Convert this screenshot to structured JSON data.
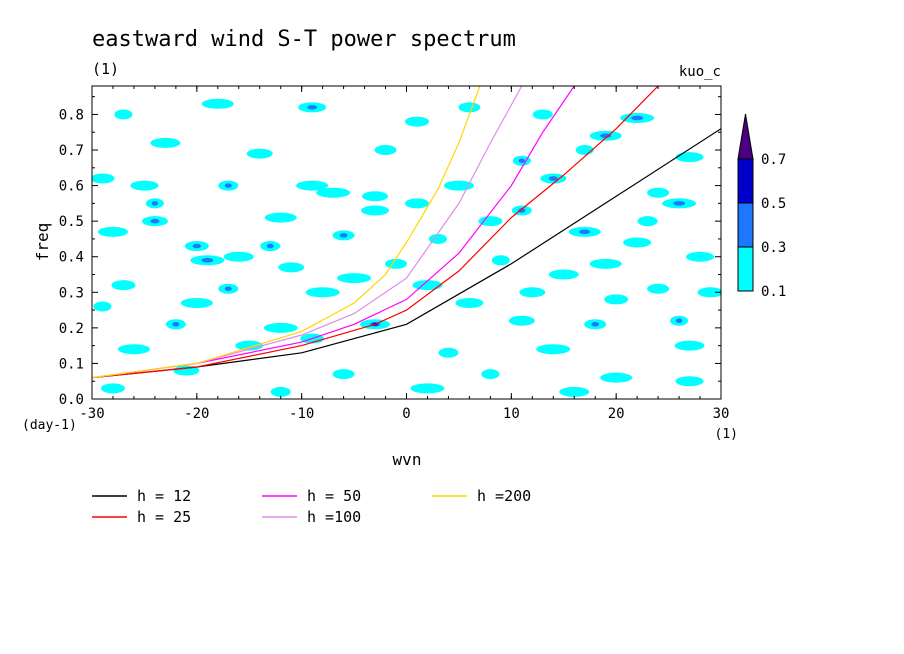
{
  "chart_data": {
    "type": "heatmap",
    "title": "eastward wind S-T power spectrum",
    "subtitle_left": "(1)",
    "subtitle_right": "kuo_c",
    "xlabel": "wvn",
    "ylabel": "freq",
    "x_unit": "(1)",
    "y_unit": "(day-1)",
    "xlim": [
      -30,
      30
    ],
    "ylim": [
      0.0,
      0.88
    ],
    "xticks": [
      -30,
      -20,
      -10,
      0,
      10,
      20,
      30
    ],
    "yticks": [
      0.0,
      0.1,
      0.2,
      0.3,
      0.4,
      0.5,
      0.6,
      0.7,
      0.8
    ],
    "xtick_labels": [
      "-30",
      "-20",
      "-10",
      "0",
      "10",
      "20",
      "30"
    ],
    "ytick_labels": [
      "0.0",
      "0.1",
      "0.2",
      "0.3",
      "0.4",
      "0.5",
      "0.6",
      "0.7",
      "0.8"
    ],
    "colorbar": {
      "levels": [
        0.1,
        0.3,
        0.5,
        0.7
      ],
      "labels": [
        "0.1",
        "0.3",
        "0.5",
        "0.7"
      ],
      "colors": [
        "#00ffff",
        "#1e78ff",
        "#0000cd",
        "#4b0082"
      ]
    },
    "lines": [
      {
        "label": "h = 12",
        "h": 12,
        "color": "#000000",
        "x": [
          -30,
          -20,
          -10,
          0,
          10,
          20,
          30
        ],
        "y": [
          0.06,
          0.09,
          0.13,
          0.21,
          0.38,
          0.57,
          0.76
        ]
      },
      {
        "label": "h = 25",
        "h": 25,
        "color": "#ff0000",
        "x": [
          -30,
          -20,
          -10,
          -3,
          0,
          5,
          10,
          15,
          20,
          24
        ],
        "y": [
          0.06,
          0.09,
          0.15,
          0.21,
          0.25,
          0.36,
          0.51,
          0.63,
          0.76,
          0.88
        ]
      },
      {
        "label": "h = 50",
        "h": 50,
        "color": "#ff00ff",
        "x": [
          -30,
          -20,
          -10,
          -5,
          0,
          5,
          10,
          13,
          16
        ],
        "y": [
          0.06,
          0.1,
          0.16,
          0.21,
          0.28,
          0.41,
          0.6,
          0.75,
          0.88
        ]
      },
      {
        "label": "h =100",
        "h": 100,
        "color": "#e08ce8",
        "x": [
          -30,
          -20,
          -10,
          -5,
          0,
          5,
          8,
          11
        ],
        "y": [
          0.06,
          0.1,
          0.18,
          0.24,
          0.34,
          0.55,
          0.72,
          0.88
        ]
      },
      {
        "label": "h =200",
        "h": 200,
        "color": "#ffd700",
        "x": [
          -30,
          -20,
          -10,
          -5,
          -2,
          0,
          3,
          5,
          7
        ],
        "y": [
          0.06,
          0.1,
          0.19,
          0.27,
          0.35,
          0.44,
          0.59,
          0.72,
          0.88
        ]
      }
    ],
    "spots": [
      {
        "x": -27,
        "y": 0.8,
        "v": 0.12
      },
      {
        "x": -18,
        "y": 0.83,
        "v": 0.1
      },
      {
        "x": -9,
        "y": 0.82,
        "v": 0.35
      },
      {
        "x": 1,
        "y": 0.78,
        "v": 0.15
      },
      {
        "x": 13,
        "y": 0.8,
        "v": 0.12
      },
      {
        "x": 22,
        "y": 0.79,
        "v": 0.3
      },
      {
        "x": -23,
        "y": 0.72,
        "v": 0.2
      },
      {
        "x": -14,
        "y": 0.69,
        "v": 0.12
      },
      {
        "x": -2,
        "y": 0.7,
        "v": 0.15
      },
      {
        "x": 11,
        "y": 0.67,
        "v": 0.4
      },
      {
        "x": 19,
        "y": 0.74,
        "v": 0.35
      },
      {
        "x": 27,
        "y": 0.68,
        "v": 0.15
      },
      {
        "x": -29,
        "y": 0.62,
        "v": 0.1
      },
      {
        "x": -17,
        "y": 0.6,
        "v": 0.35
      },
      {
        "x": -7,
        "y": 0.58,
        "v": 0.12
      },
      {
        "x": 5,
        "y": 0.6,
        "v": 0.15
      },
      {
        "x": 14,
        "y": 0.62,
        "v": 0.35
      },
      {
        "x": 24,
        "y": 0.58,
        "v": 0.12
      },
      {
        "x": -24,
        "y": 0.55,
        "v": 0.35
      },
      {
        "x": -12,
        "y": 0.51,
        "v": 0.12
      },
      {
        "x": -3,
        "y": 0.53,
        "v": 0.15
      },
      {
        "x": 8,
        "y": 0.5,
        "v": 0.12
      },
      {
        "x": 11,
        "y": 0.53,
        "v": 0.35
      },
      {
        "x": 26,
        "y": 0.55,
        "v": 0.35
      },
      {
        "x": -28,
        "y": 0.47,
        "v": 0.15
      },
      {
        "x": -24,
        "y": 0.5,
        "v": 0.3
      },
      {
        "x": -6,
        "y": 0.46,
        "v": 0.35
      },
      {
        "x": 3,
        "y": 0.45,
        "v": 0.12
      },
      {
        "x": 17,
        "y": 0.47,
        "v": 0.35
      },
      {
        "x": 22,
        "y": 0.44,
        "v": 0.12
      },
      {
        "x": -20,
        "y": 0.43,
        "v": 0.32
      },
      {
        "x": -13,
        "y": 0.43,
        "v": 0.3
      },
      {
        "x": -19,
        "y": 0.39,
        "v": 0.4
      },
      {
        "x": -16,
        "y": 0.4,
        "v": 0.15
      },
      {
        "x": -11,
        "y": 0.37,
        "v": 0.12
      },
      {
        "x": -1,
        "y": 0.38,
        "v": 0.15
      },
      {
        "x": 9,
        "y": 0.39,
        "v": 0.12
      },
      {
        "x": 19,
        "y": 0.38,
        "v": 0.15
      },
      {
        "x": 28,
        "y": 0.4,
        "v": 0.12
      },
      {
        "x": -27,
        "y": 0.32,
        "v": 0.15
      },
      {
        "x": -17,
        "y": 0.31,
        "v": 0.35
      },
      {
        "x": -8,
        "y": 0.3,
        "v": 0.12
      },
      {
        "x": 2,
        "y": 0.32,
        "v": 0.15
      },
      {
        "x": 12,
        "y": 0.3,
        "v": 0.12
      },
      {
        "x": 24,
        "y": 0.31,
        "v": 0.15
      },
      {
        "x": -29,
        "y": 0.26,
        "v": 0.12
      },
      {
        "x": -20,
        "y": 0.27,
        "v": 0.15
      },
      {
        "x": 6,
        "y": 0.27,
        "v": 0.12
      },
      {
        "x": 20,
        "y": 0.28,
        "v": 0.15
      },
      {
        "x": -22,
        "y": 0.21,
        "v": 0.3
      },
      {
        "x": -12,
        "y": 0.2,
        "v": 0.12
      },
      {
        "x": -3,
        "y": 0.21,
        "v": 0.45
      },
      {
        "x": 11,
        "y": 0.22,
        "v": 0.15
      },
      {
        "x": 18,
        "y": 0.21,
        "v": 0.35
      },
      {
        "x": 26,
        "y": 0.22,
        "v": 0.35
      },
      {
        "x": -26,
        "y": 0.14,
        "v": 0.12
      },
      {
        "x": -15,
        "y": 0.15,
        "v": 0.12
      },
      {
        "x": -9,
        "y": 0.17,
        "v": 0.15
      },
      {
        "x": 4,
        "y": 0.13,
        "v": 0.12
      },
      {
        "x": 14,
        "y": 0.14,
        "v": 0.15
      },
      {
        "x": 27,
        "y": 0.15,
        "v": 0.12
      },
      {
        "x": -21,
        "y": 0.08,
        "v": 0.12
      },
      {
        "x": -6,
        "y": 0.07,
        "v": 0.15
      },
      {
        "x": 8,
        "y": 0.07,
        "v": 0.12
      },
      {
        "x": 20,
        "y": 0.06,
        "v": 0.15
      },
      {
        "x": 27,
        "y": 0.05,
        "v": 0.12
      },
      {
        "x": -28,
        "y": 0.03,
        "v": 0.12
      },
      {
        "x": -12,
        "y": 0.02,
        "v": 0.15
      },
      {
        "x": 2,
        "y": 0.03,
        "v": 0.12
      },
      {
        "x": 16,
        "y": 0.02,
        "v": 0.15
      },
      {
        "x": -3,
        "y": 0.57,
        "v": 0.12
      },
      {
        "x": 6,
        "y": 0.82,
        "v": 0.15
      },
      {
        "x": 17,
        "y": 0.7,
        "v": 0.12
      },
      {
        "x": -9,
        "y": 0.6,
        "v": 0.12
      },
      {
        "x": -25,
        "y": 0.6,
        "v": 0.12
      },
      {
        "x": 1,
        "y": 0.55,
        "v": 0.12
      },
      {
        "x": 23,
        "y": 0.5,
        "v": 0.12
      },
      {
        "x": -5,
        "y": 0.34,
        "v": 0.12
      },
      {
        "x": 15,
        "y": 0.35,
        "v": 0.12
      },
      {
        "x": 29,
        "y": 0.3,
        "v": 0.12
      }
    ]
  }
}
